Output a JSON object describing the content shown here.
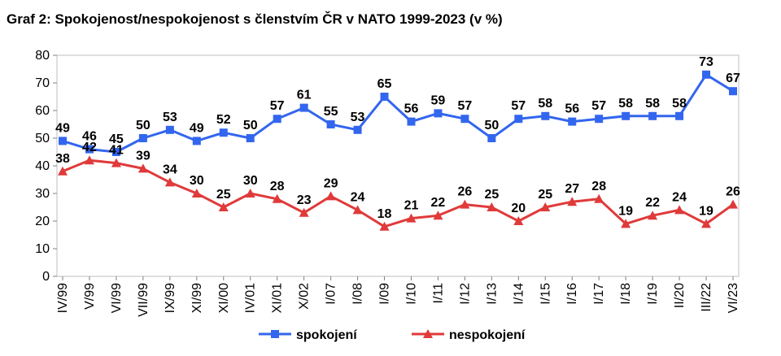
{
  "title": "Graf 2: Spokojenost/nespokojenost s členstvím ČR v NATO 1999-2023 (v %)",
  "chart_data": {
    "type": "line",
    "categories": [
      "IV/99",
      "V/99",
      "VI/99",
      "VII/99",
      "IX/99",
      "XI/99",
      "XI/00",
      "IV/01",
      "XI/01",
      "X/02",
      "I/07",
      "I/08",
      "I/09",
      "I/10",
      "I/11",
      "I/12",
      "I/13",
      "I/14",
      "I/15",
      "I/16",
      "I/17",
      "I/18",
      "I/19",
      "II/20",
      "III/22",
      "VI/23"
    ],
    "ylim": [
      0,
      80
    ],
    "yticks": [
      0,
      10,
      20,
      30,
      40,
      50,
      60,
      70,
      80
    ],
    "grid": false,
    "legend_position": "bottom",
    "series": [
      {
        "name": "spokojení",
        "color": "#3366ee",
        "marker": "square",
        "values": [
          49,
          46,
          45,
          50,
          53,
          49,
          52,
          50,
          57,
          61,
          55,
          53,
          65,
          56,
          59,
          57,
          50,
          57,
          58,
          56,
          57,
          58,
          58,
          58,
          73,
          67
        ]
      },
      {
        "name": "nespokojení",
        "color": "#e03a3a",
        "marker": "triangle",
        "values": [
          38,
          42,
          41,
          39,
          34,
          30,
          25,
          30,
          28,
          23,
          29,
          24,
          18,
          21,
          22,
          26,
          25,
          20,
          25,
          27,
          28,
          19,
          22,
          24,
          19,
          26
        ]
      }
    ]
  }
}
